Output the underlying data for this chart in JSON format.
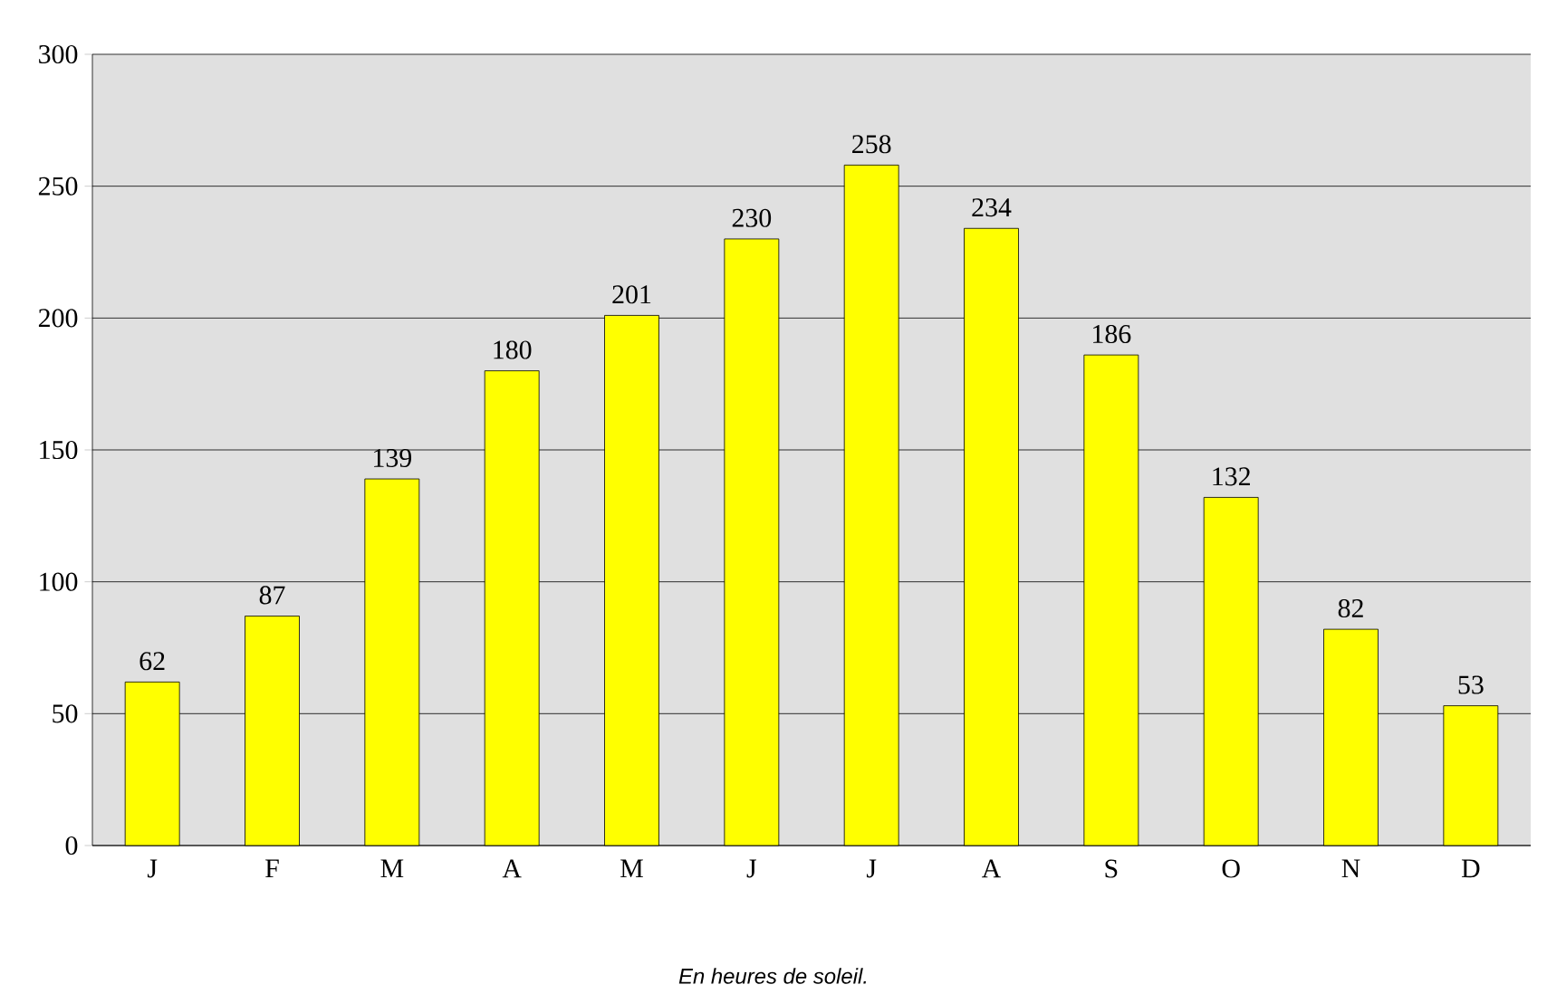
{
  "chart_data": {
    "type": "bar",
    "categories": [
      "J",
      "F",
      "M",
      "A",
      "M",
      "J",
      "J",
      "A",
      "S",
      "O",
      "N",
      "D"
    ],
    "values": [
      62,
      87,
      139,
      180,
      201,
      230,
      258,
      234,
      186,
      132,
      82,
      53
    ],
    "color": "#ffff00",
    "data_labels": true,
    "grid": "y",
    "ylim": [
      0,
      300
    ],
    "yticks": [
      0,
      50,
      100,
      150,
      200,
      250,
      300
    ],
    "annotations": [
      "En heures de soleil."
    ]
  }
}
